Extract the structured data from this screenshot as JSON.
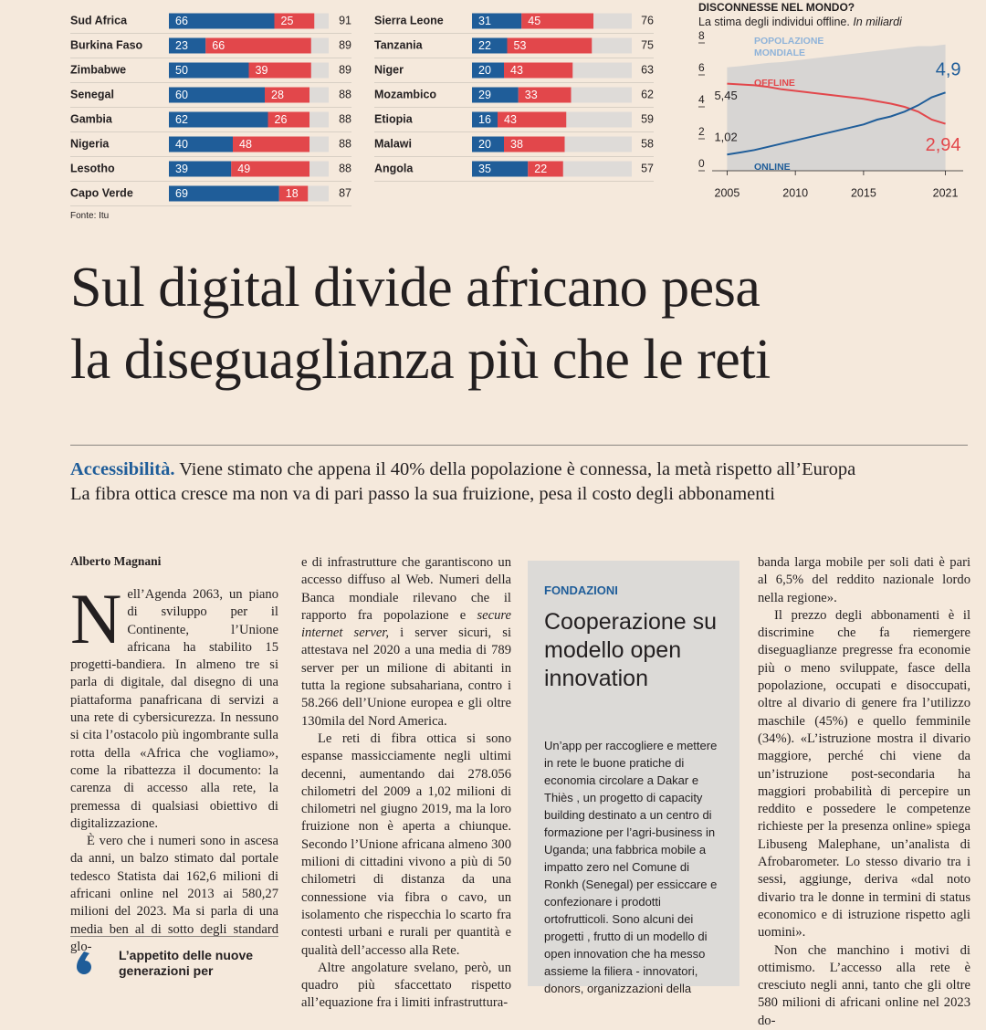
{
  "chart_data": [
    {
      "type": "bar",
      "orientation": "horizontal",
      "stacked": true,
      "categories": [
        "Sud Africa",
        "Burkina Faso",
        "Zimbabwe",
        "Senegal",
        "Gambia",
        "Nigeria",
        "Lesotho",
        "Capo Verde"
      ],
      "series": [
        {
          "color": "#1f5d99",
          "values": [
            66,
            23,
            50,
            60,
            62,
            40,
            39,
            69
          ]
        },
        {
          "color": "#e2474b",
          "values": [
            25,
            66,
            39,
            28,
            26,
            48,
            49,
            18
          ]
        }
      ],
      "totals": [
        91,
        89,
        89,
        88,
        88,
        88,
        88,
        87
      ],
      "xlim": [
        0,
        100
      ]
    },
    {
      "type": "bar",
      "orientation": "horizontal",
      "stacked": true,
      "categories": [
        "Sierra Leone",
        "Tanzania",
        "Niger",
        "Mozambico",
        "Etiopia",
        "Malawi",
        "Angola"
      ],
      "series": [
        {
          "color": "#1f5d99",
          "values": [
            31,
            22,
            20,
            29,
            16,
            20,
            35
          ]
        },
        {
          "color": "#e2474b",
          "values": [
            45,
            53,
            43,
            33,
            43,
            38,
            22
          ]
        }
      ],
      "totals": [
        76,
        75,
        63,
        62,
        59,
        58,
        57
      ],
      "xlim": [
        0,
        100
      ]
    },
    {
      "type": "line",
      "title": "DISCONNESSE NEL MONDO?",
      "subtitle": [
        "La stima degli individui offline.",
        "In miliardi"
      ],
      "x": [
        2005,
        2006,
        2007,
        2008,
        2009,
        2010,
        2011,
        2012,
        2013,
        2014,
        2015,
        2016,
        2017,
        2018,
        2019,
        2020,
        2021
      ],
      "series": [
        {
          "name": "POPOLAZIONE MONDIALE",
          "color": "#d7d5d3",
          "label_color": "#8fb3d9",
          "area": true,
          "values": [
            6.47,
            6.55,
            6.65,
            6.75,
            6.8,
            6.9,
            7.0,
            7.1,
            7.2,
            7.3,
            7.4,
            7.5,
            7.6,
            7.7,
            7.8,
            7.8,
            7.9
          ]
        },
        {
          "name": "OFFLINE",
          "color": "#e2474b",
          "values": [
            5.45,
            5.4,
            5.35,
            5.25,
            5.1,
            5.0,
            4.9,
            4.8,
            4.7,
            4.6,
            4.5,
            4.35,
            4.2,
            4.0,
            3.7,
            3.2,
            2.94
          ],
          "value_labels": [
            "5,45",
            null,
            null,
            null,
            null,
            null,
            null,
            null,
            null,
            null,
            null,
            null,
            null,
            null,
            null,
            null,
            "2,94"
          ]
        },
        {
          "name": "ONLINE",
          "color": "#1f5d99",
          "values": [
            1.02,
            1.15,
            1.3,
            1.5,
            1.7,
            1.9,
            2.1,
            2.3,
            2.5,
            2.7,
            2.9,
            3.2,
            3.4,
            3.7,
            4.1,
            4.6,
            4.9
          ],
          "value_labels": [
            "1,02",
            null,
            null,
            null,
            null,
            null,
            null,
            null,
            null,
            null,
            null,
            null,
            null,
            null,
            null,
            null,
            "4,9"
          ]
        }
      ],
      "xlim": [
        2003.9,
        2022.3
      ],
      "xticks": [
        2005,
        2010,
        2015,
        2021
      ],
      "ylim": [
        0,
        8
      ],
      "yticks": [
        0,
        2,
        4,
        6,
        8
      ]
    }
  ],
  "source": "Fonte: Itu",
  "headline": [
    "Sul digital divide africano pesa",
    "la diseguaglianza più che le reti"
  ],
  "subhead": {
    "kicker": "Accessibilità.",
    "lines": [
      "Viene stimato che appena il 40% della popolazione è connessa, la metà rispetto all’Europa",
      "La fibra ottica cresce ma non va di pari passo la sua fruizione, pesa il costo degli abbonamenti"
    ]
  },
  "article": {
    "author": "Alberto Magnani",
    "columns": [
      [
        [
          "Nell’Agenda 2063, un piano di sviluppo per il Continente, l’Unione africana ha stabilito 15 progetti-bandiera. In almeno tre si parla di digitale, dal disegno di una piattaforma panafricana di servizi a una rete di cybersicurezza. In nessuno si cita l’ostacolo più ingombrante sulla rotta della «Africa che vogliamo», come la ribattezza il documento: la carenza di accesso alla rete, la premessa di qualsiasi obiettivo di digitalizzazione."
        ],
        [
          "È vero che i numeri sono in ascesa da anni, un balzo stimato dal portale tedesco Statista dai 162,6 milioni di africani online nel 2013 ai 580,27 milioni del 2023. Ma si parla di una media ben al di sotto degli standard glo-"
        ]
      ],
      [
        [
          "e di infrastrutture che garantiscono un accesso diffuso al Web. Numeri della Banca mondiale rilevano che il rapporto fra popolazione e ",
          "secure internet server,",
          " i server sicuri, si attestava nel 2020 a una media di 789 server per un milione di abitanti in tutta la regione subsahariana, contro i 58.266 dell’Unione europea e gli oltre 130mila del Nord America."
        ],
        [
          "Le reti di fibra ottica si sono espanse massicciamente negli ultimi decenni, aumentando dai 278.056 chilometri del 2009 a 1,02 milioni di chilometri nel giugno 2019, ma la loro fruizione non è aperta a chiunque. Secondo l’Unione africana almeno 300 milioni di cittadini vivono a più di 50 chilometri di distanza da una connessione via fibra o cavo, un isolamento che rispecchia lo scarto fra contesti urbani e rurali per quantità e qualità dell’accesso alla Rete."
        ],
        [
          "Altre angolature svelano, però, un quadro più sfaccettato rispetto all’equazione fra i limiti infrastruttura-"
        ]
      ],
      [
        [
          "banda larga mobile per soli dati è pari al 6,5% del reddito nazionale lordo nella regione»."
        ],
        [
          "Il prezzo degli abbonamenti è il discrimine che fa riemergere diseguaglianze pregresse fra economie più o meno sviluppate, fasce della popolazione, occupati e disoccupati, oltre al divario di genere fra l’utilizzo maschile (45%) e quello femminile (34%). «L’istruzione mostra il divario maggiore, perché chi viene da un’istruzione post-secondaria ha maggiori probabilità di percepire un reddito e possedere le competenze richieste per la presenza online» spiega Libuseng Malephane, un’analista di Afrobarometer. Lo stesso divario tra i sessi, aggiunge, deriva «dal noto divario tra le donne in termini di status economico e di istruzione rispetto agli uomini»."
        ],
        [
          "Non che manchino i motivi di ottimismo. L’accesso alla rete è cresciuto negli anni, tanto che gli oltre 580 milioni di africani online nel 2023 do-"
        ]
      ]
    ]
  },
  "pullquote": "L’appetito delle nuove generazioni per",
  "sidebar": {
    "kicker": "FONDAZIONI",
    "title": "Cooperazione su modello open innovation",
    "text": "Un’app per raccogliere e mettere in rete le buone pratiche di economia circolare a Dakar e Thiès , un progetto di capacity building destinato a un centro di formazione per l’agri-business in Uganda; una fabbrica mobile a impatto zero nel Comune di Ronkh (Senegal) per essiccare e confezionare i prodotti ortofrutticoli. Sono alcuni dei progetti , frutto di un modello di open innovation che ha messo assieme la filiera - innovatori, donors, organizzazioni della"
  }
}
